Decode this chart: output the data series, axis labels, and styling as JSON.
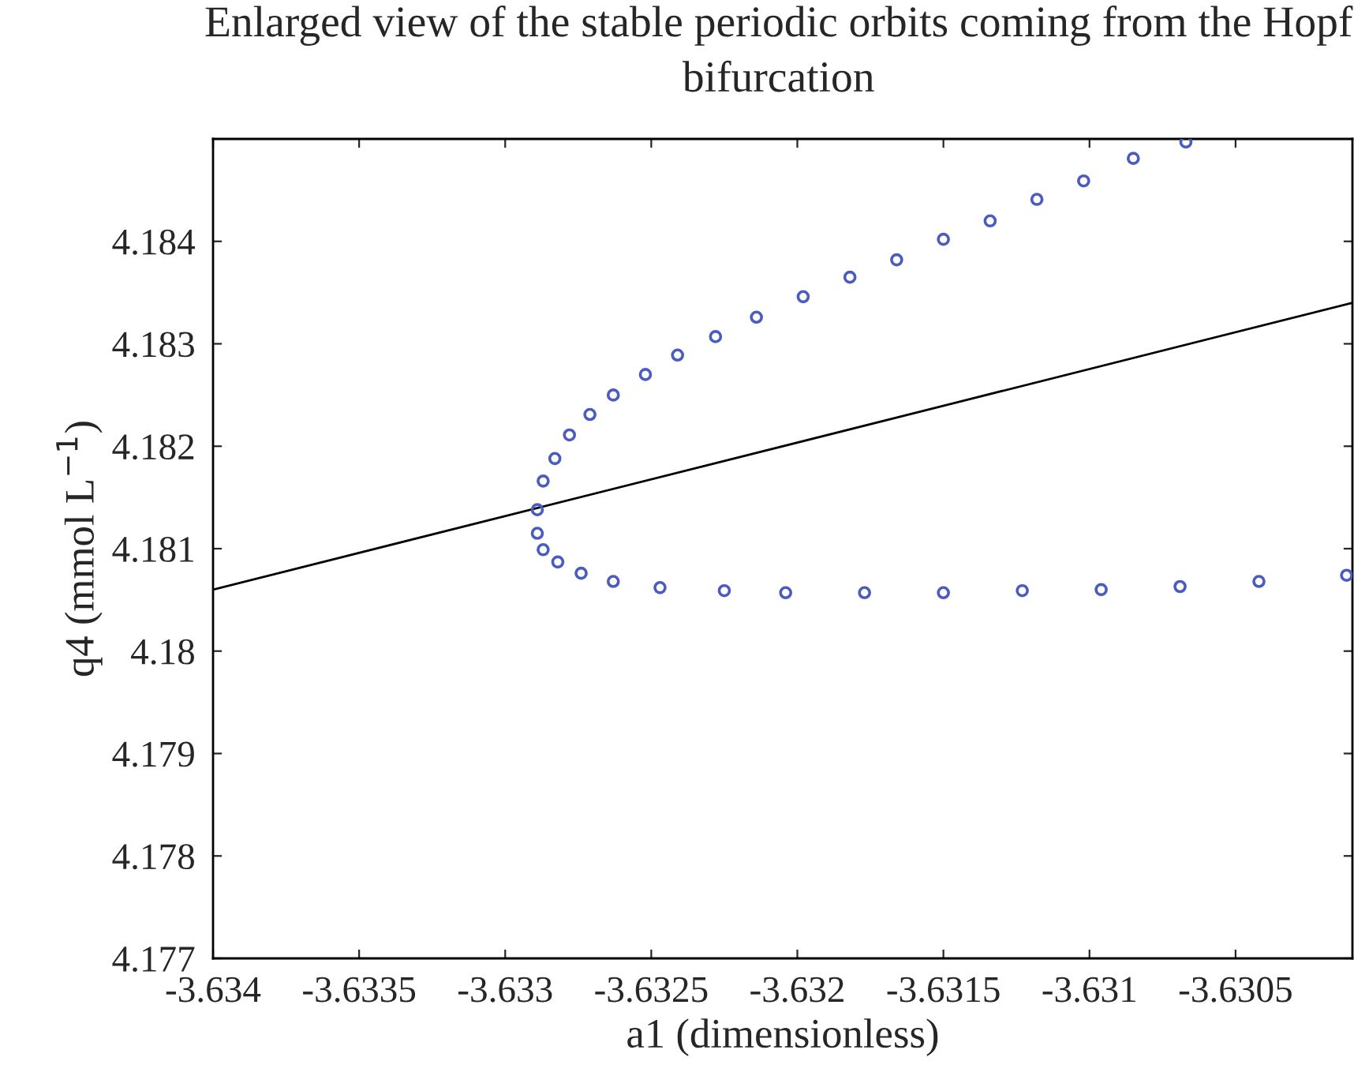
{
  "chart_data": {
    "type": "scatter",
    "title": "Enlarged view of the stable periodic orbits coming from the Hopf bifurcation",
    "xlabel": "a1 (dimensionless)",
    "ylabel": "q4 (mmol L$^{−1}$)",
    "series": [
      {
        "color": "#4a5cc0",
        "marker": "circle",
        "x": [
          -3.63067,
          -3.63085,
          -3.63102,
          -3.63118,
          -3.63134,
          -3.6315,
          -3.63166,
          -3.63182,
          -3.63198,
          -3.63214,
          -3.63228,
          -3.63241,
          -3.63252,
          -3.63263,
          -3.63271,
          -3.63278,
          -3.63283,
          -3.63287,
          -3.63289,
          -3.63289,
          -3.63287,
          -3.63282,
          -3.63274,
          -3.63263,
          -3.63247,
          -3.63225,
          -3.63204,
          -3.63177,
          -3.6315,
          -3.63123,
          -3.63096,
          -3.63069,
          -3.63042,
          -3.63012
        ],
        "values": [
          4.18497,
          4.18481,
          4.18459,
          4.18441,
          4.1842,
          4.18402,
          4.18382,
          4.18365,
          4.18346,
          4.18326,
          4.18307,
          4.18289,
          4.1827,
          4.1825,
          4.18231,
          4.18211,
          4.18188,
          4.18166,
          4.18138,
          4.18115,
          4.18099,
          4.18087,
          4.18076,
          4.18068,
          4.18062,
          4.18059,
          4.18057,
          4.18057,
          4.18057,
          4.18059,
          4.1806,
          4.18063,
          4.18068,
          4.18074
        ]
      },
      {
        "type": "line",
        "color": "#000000",
        "line_style": "solid",
        "x": [
          -3.634,
          -3.6301
        ],
        "values": [
          4.1806,
          4.1834
        ]
      }
    ],
    "xlim": [
      -3.634,
      -3.6301
    ],
    "xticks": [
      -3.634,
      -3.6335,
      -3.633,
      -3.6325,
      -3.632,
      -3.6315,
      -3.631,
      -3.6305
    ],
    "ylim": [
      4.177,
      4.185
    ],
    "yticks": [
      4.177,
      4.178,
      4.179,
      4.18,
      4.181,
      4.182,
      4.183,
      4.184
    ],
    "grid": false,
    "legend": false
  }
}
